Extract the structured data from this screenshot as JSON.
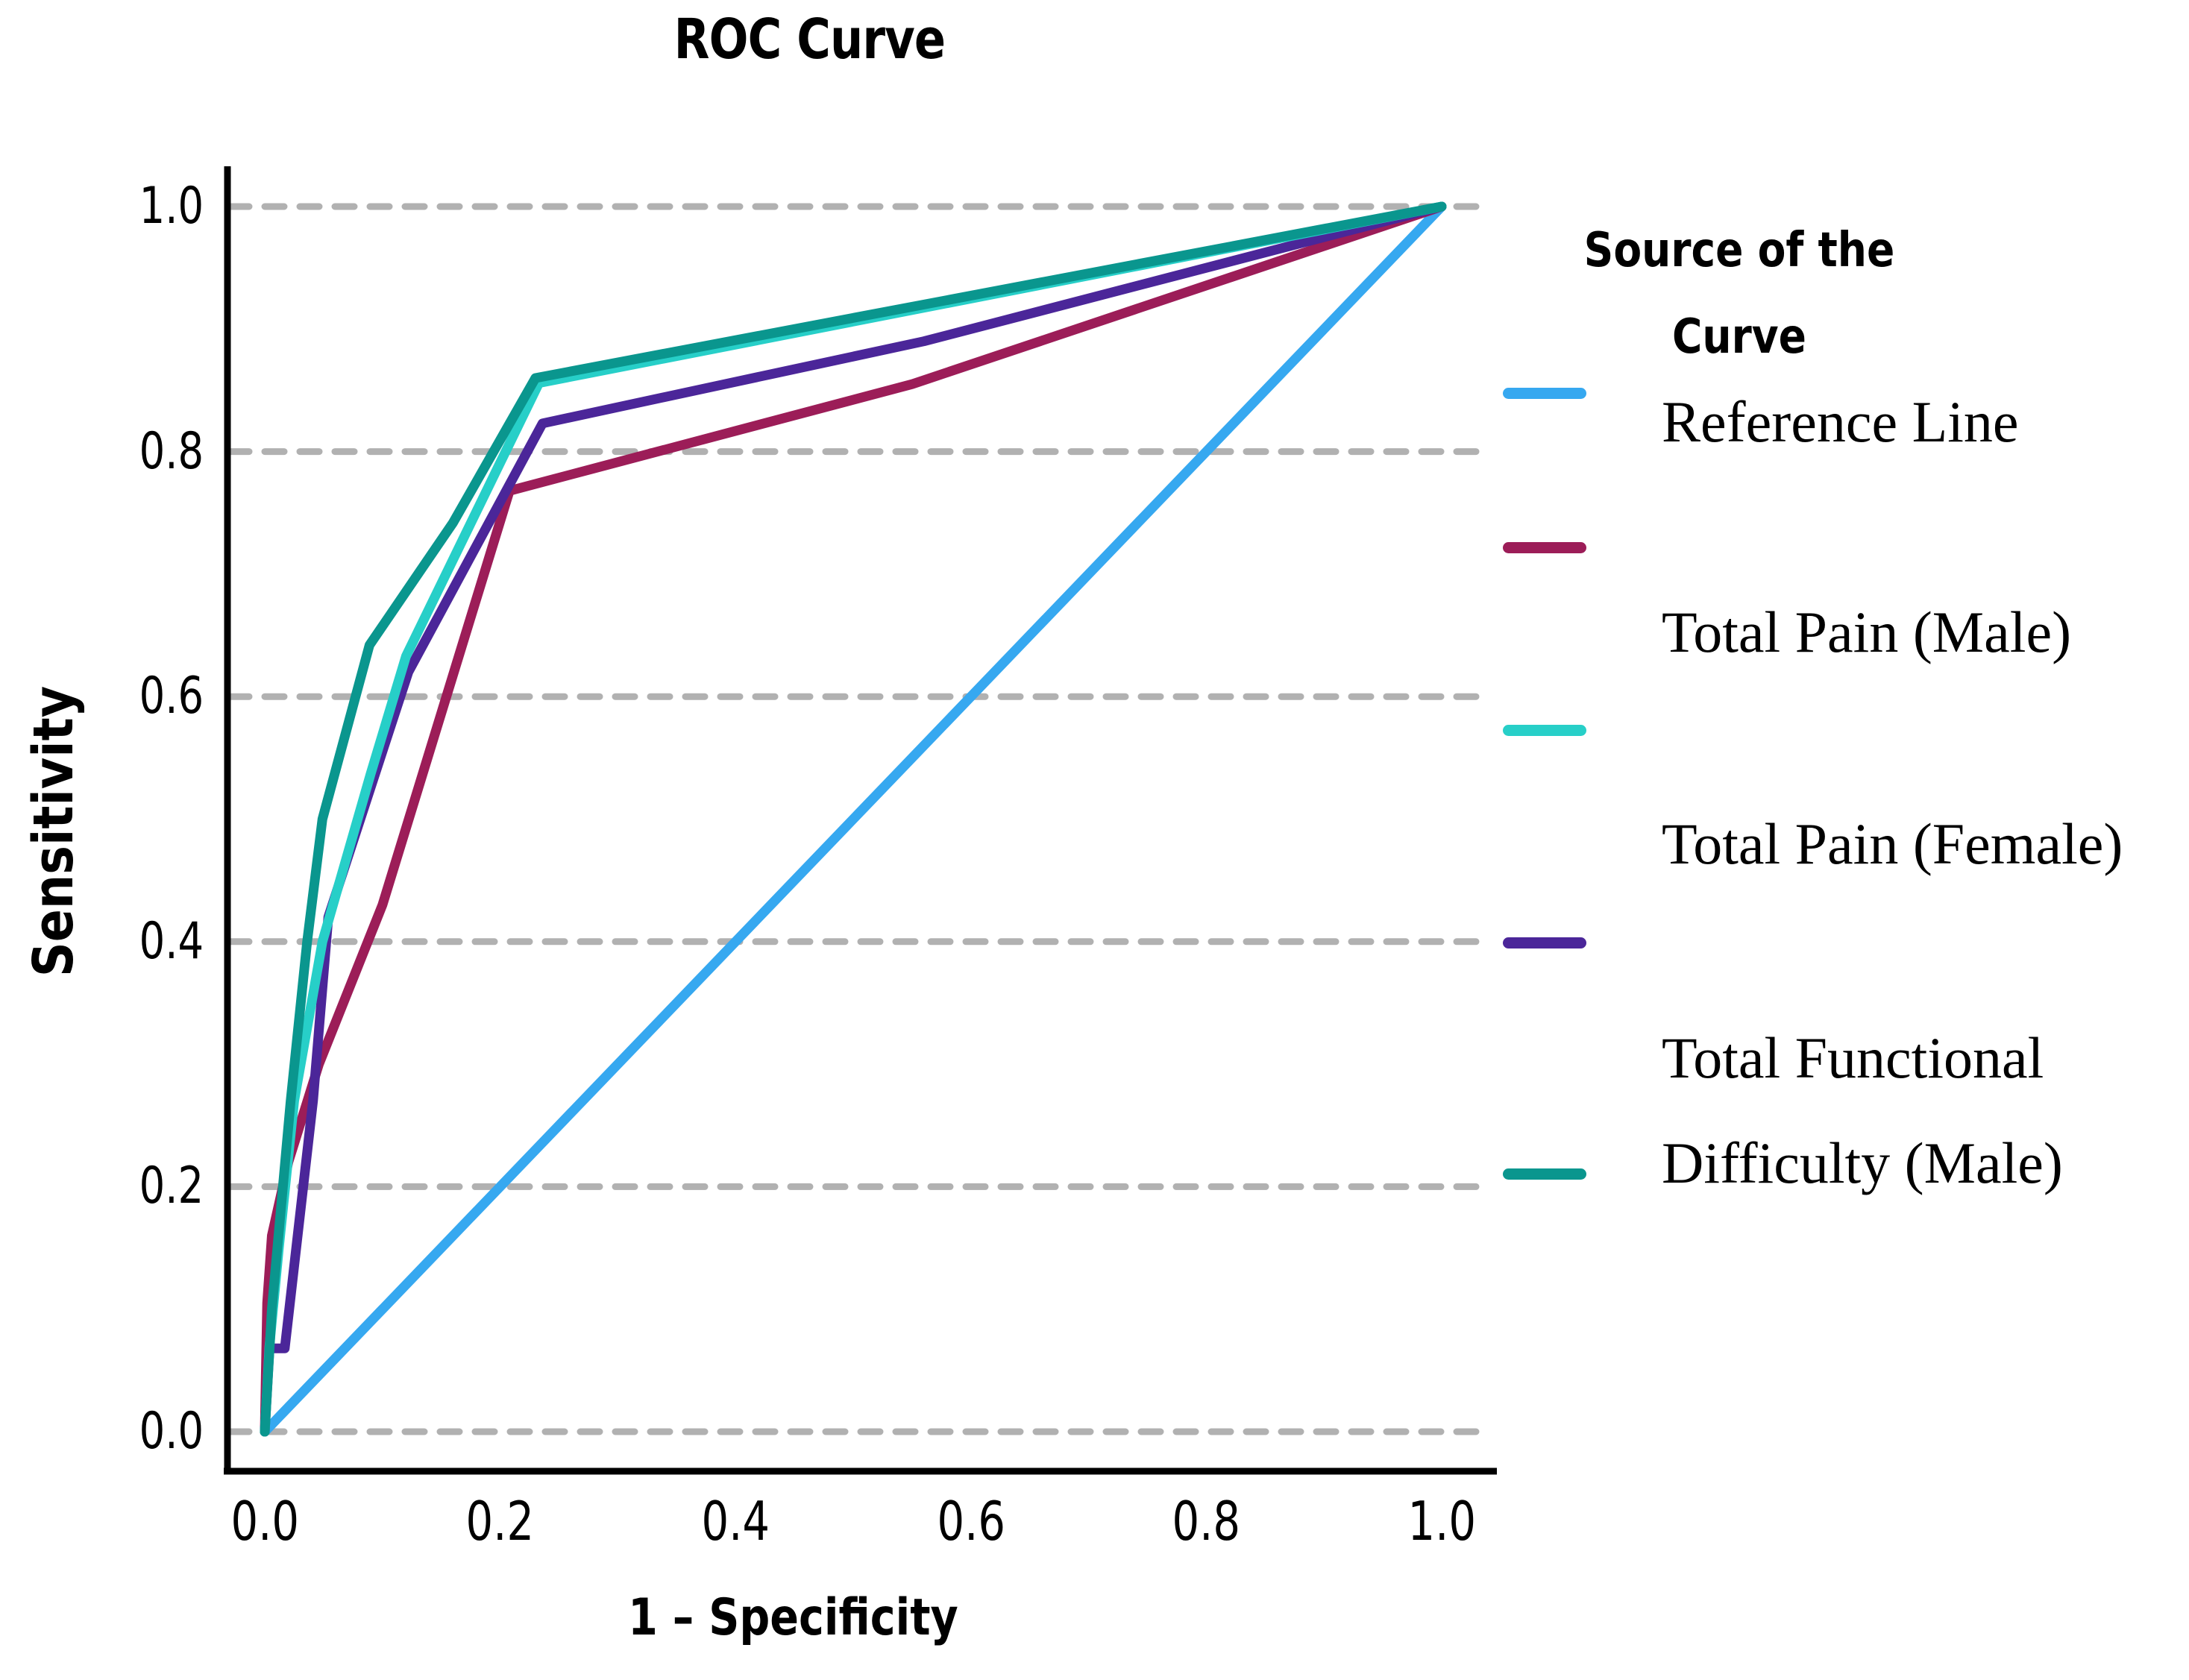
{
  "title": "ROC Curve",
  "axes": {
    "x_label": "1 – Specificity",
    "y_label": "Sensitivity",
    "x_tick_labels": [
      "0.0",
      "0.2",
      "0.4",
      "0.6",
      "0.8",
      "1.0"
    ],
    "y_tick_labels": [
      "0.0",
      "0.2",
      "0.4",
      "0.6",
      "0.8",
      "1.0"
    ]
  },
  "legend": {
    "title_lines": [
      "Source of the",
      "Curve"
    ],
    "entries": [
      {
        "label": "Reference Line",
        "color": "#36A8F0"
      },
      {
        "label": "Total Pain (Male)",
        "color": "#9C1D58"
      },
      {
        "label": "Total Pain (Female)",
        "color": "#27CFC8"
      },
      {
        "label": "Total Functional",
        "color": "#4B2699"
      },
      {
        "label": "Difficulty (Male)",
        "color": "#0A968E"
      }
    ]
  },
  "chart_data": {
    "type": "line",
    "title": "ROC Curve",
    "xlabel": "1 – Specificity",
    "ylabel": "Sensitivity",
    "xlim": [
      0,
      1
    ],
    "ylim": [
      0,
      1
    ],
    "x_ticks": [
      0,
      0.2,
      0.4,
      0.6,
      0.8,
      1.0
    ],
    "y_ticks": [
      0,
      0.2,
      0.4,
      0.6,
      0.8,
      1.0
    ],
    "grid": "horizontal dashed gray only",
    "grid_color": "#B1B1B1",
    "legend_position": "right",
    "series": [
      {
        "id": "reference",
        "legend_label": "Reference Line",
        "color": "#36A8F0",
        "points": [
          [
            0,
            0
          ],
          [
            1,
            1
          ]
        ]
      },
      {
        "id": "maroon",
        "legend_label": "Total Pain (Male)",
        "color": "#9C1D58",
        "points": [
          [
            0,
            0
          ],
          [
            0.002,
            0.105
          ],
          [
            0.006,
            0.16
          ],
          [
            0.02,
            0.22
          ],
          [
            0.046,
            0.3
          ],
          [
            0.1,
            0.43
          ],
          [
            0.208,
            0.768
          ],
          [
            0.55,
            0.855
          ],
          [
            1,
            1
          ]
        ]
      },
      {
        "id": "cyan",
        "legend_label": "Total Pain (Female)",
        "color": "#27CFC8",
        "points": [
          [
            0,
            0
          ],
          [
            0.004,
            0.07
          ],
          [
            0.012,
            0.15
          ],
          [
            0.025,
            0.27
          ],
          [
            0.049,
            0.4
          ],
          [
            0.09,
            0.537
          ],
          [
            0.12,
            0.633
          ],
          [
            0.233,
            0.856
          ],
          [
            1,
            1
          ]
        ]
      },
      {
        "id": "purple",
        "legend_label": "Total Functional Difficulty (Male)",
        "color": "#4B2699",
        "points": [
          [
            0,
            0
          ],
          [
            0.004,
            0.068
          ],
          [
            0.017,
            0.068
          ],
          [
            0.041,
            0.27
          ],
          [
            0.054,
            0.42
          ],
          [
            0.122,
            0.62
          ],
          [
            0.236,
            0.823
          ],
          [
            0.56,
            0.89
          ],
          [
            1,
            1
          ]
        ]
      },
      {
        "id": "teal",
        "legend_label": null,
        "color": "#0A968E",
        "points": [
          [
            0,
            0
          ],
          [
            0.006,
            0.1
          ],
          [
            0.022,
            0.27
          ],
          [
            0.036,
            0.4
          ],
          [
            0.049,
            0.5
          ],
          [
            0.089,
            0.642
          ],
          [
            0.16,
            0.742
          ],
          [
            0.23,
            0.86
          ],
          [
            1,
            1
          ]
        ]
      }
    ]
  }
}
